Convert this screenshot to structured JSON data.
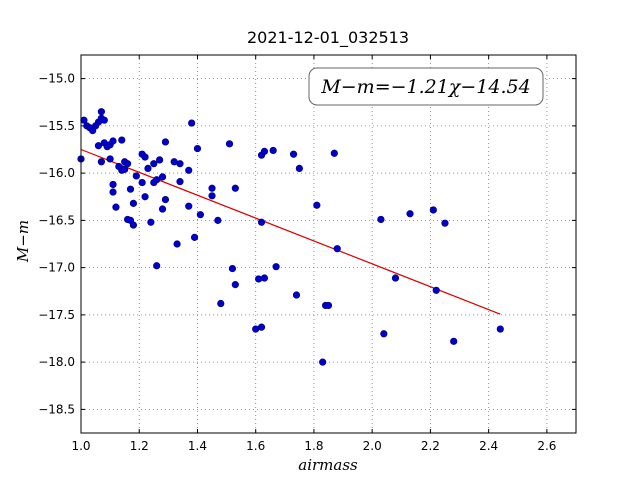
{
  "chart_data": {
    "type": "scatter",
    "title": "2021-12-01_032513",
    "xlabel": "airmass",
    "ylabel": "M−m",
    "xlim": [
      1.0,
      2.7
    ],
    "ylim": [
      -18.75,
      -14.75
    ],
    "y_inverted": true,
    "xticks": [
      1.0,
      1.2,
      1.4,
      1.6,
      1.8,
      2.0,
      2.2,
      2.4,
      2.6
    ],
    "xtick_labels": [
      "1.0",
      "1.2",
      "1.4",
      "1.6",
      "1.8",
      "2.0",
      "2.2",
      "2.4",
      "2.6"
    ],
    "yticks": [
      -15.0,
      -15.5,
      -16.0,
      -16.5,
      -17.0,
      -17.5,
      -18.0,
      -18.5
    ],
    "ytick_labels": [
      "−15.0",
      "−15.5",
      "−16.0",
      "−16.5",
      "−17.0",
      "−17.5",
      "−18.0",
      "−18.5"
    ],
    "grid": true,
    "annotation": "M−m=−1.21χ−14.54",
    "fit": {
      "slope": -1.21,
      "intercept": -14.54,
      "x_range": [
        1.0,
        2.44
      ],
      "color": "#dd0000"
    },
    "marker_color": "#0000cc",
    "points": [
      [
        1.0,
        -15.85
      ],
      [
        1.01,
        -15.44
      ],
      [
        1.02,
        -15.5
      ],
      [
        1.03,
        -15.52
      ],
      [
        1.04,
        -15.55
      ],
      [
        1.05,
        -15.5
      ],
      [
        1.06,
        -15.71
      ],
      [
        1.06,
        -15.46
      ],
      [
        1.07,
        -15.42
      ],
      [
        1.07,
        -15.35
      ],
      [
        1.07,
        -15.88
      ],
      [
        1.08,
        -15.44
      ],
      [
        1.08,
        -15.68
      ],
      [
        1.09,
        -15.72
      ],
      [
        1.1,
        -15.7
      ],
      [
        1.1,
        -15.85
      ],
      [
        1.11,
        -16.12
      ],
      [
        1.11,
        -16.2
      ],
      [
        1.11,
        -15.66
      ],
      [
        1.12,
        -16.36
      ],
      [
        1.13,
        -15.93
      ],
      [
        1.14,
        -15.97
      ],
      [
        1.14,
        -15.65
      ],
      [
        1.15,
        -15.88
      ],
      [
        1.15,
        -15.96
      ],
      [
        1.16,
        -15.9
      ],
      [
        1.16,
        -16.49
      ],
      [
        1.17,
        -16.17
      ],
      [
        1.17,
        -16.5
      ],
      [
        1.18,
        -16.32
      ],
      [
        1.18,
        -16.55
      ],
      [
        1.19,
        -16.03
      ],
      [
        1.21,
        -15.8
      ],
      [
        1.21,
        -16.1
      ],
      [
        1.22,
        -16.25
      ],
      [
        1.22,
        -15.83
      ],
      [
        1.23,
        -15.95
      ],
      [
        1.24,
        -16.52
      ],
      [
        1.25,
        -15.9
      ],
      [
        1.25,
        -16.1
      ],
      [
        1.26,
        -16.98
      ],
      [
        1.26,
        -16.07
      ],
      [
        1.27,
        -15.86
      ],
      [
        1.28,
        -16.04
      ],
      [
        1.28,
        -16.38
      ],
      [
        1.29,
        -15.67
      ],
      [
        1.29,
        -16.28
      ],
      [
        1.32,
        -15.88
      ],
      [
        1.33,
        -16.75
      ],
      [
        1.34,
        -15.9
      ],
      [
        1.34,
        -16.09
      ],
      [
        1.37,
        -15.97
      ],
      [
        1.37,
        -16.35
      ],
      [
        1.38,
        -15.47
      ],
      [
        1.39,
        -16.68
      ],
      [
        1.4,
        -15.74
      ],
      [
        1.41,
        -16.44
      ],
      [
        1.45,
        -16.24
      ],
      [
        1.45,
        -16.16
      ],
      [
        1.47,
        -16.5
      ],
      [
        1.48,
        -17.38
      ],
      [
        1.51,
        -15.69
      ],
      [
        1.52,
        -17.01
      ],
      [
        1.53,
        -16.16
      ],
      [
        1.53,
        -17.18
      ],
      [
        1.6,
        -17.65
      ],
      [
        1.61,
        -17.12
      ],
      [
        1.62,
        -15.81
      ],
      [
        1.62,
        -16.52
      ],
      [
        1.62,
        -17.63
      ],
      [
        1.63,
        -17.11
      ],
      [
        1.63,
        -15.77
      ],
      [
        1.66,
        -15.76
      ],
      [
        1.67,
        -16.99
      ],
      [
        1.73,
        -15.8
      ],
      [
        1.74,
        -17.29
      ],
      [
        1.75,
        -15.95
      ],
      [
        1.81,
        -16.34
      ],
      [
        1.83,
        -18.0
      ],
      [
        1.84,
        -17.4
      ],
      [
        1.85,
        -17.4
      ],
      [
        1.87,
        -15.79
      ],
      [
        1.88,
        -16.8
      ],
      [
        2.03,
        -16.49
      ],
      [
        2.04,
        -17.7
      ],
      [
        2.08,
        -17.11
      ],
      [
        2.13,
        -16.43
      ],
      [
        2.21,
        -16.39
      ],
      [
        2.22,
        -17.24
      ],
      [
        2.25,
        -16.53
      ],
      [
        2.28,
        -17.78
      ],
      [
        2.44,
        -17.65
      ]
    ]
  }
}
